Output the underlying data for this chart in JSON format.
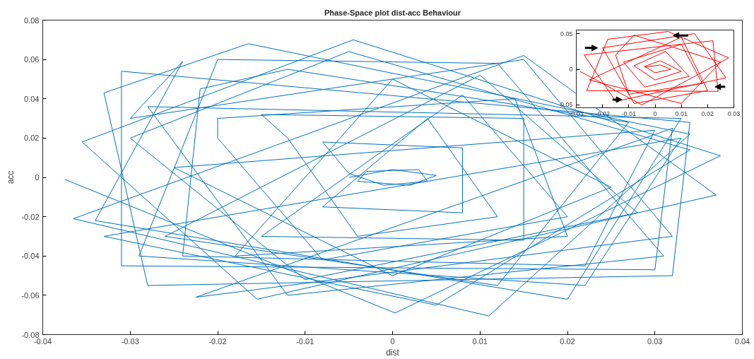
{
  "chart_data": [
    {
      "type": "line",
      "title": "Phase-Space plot dist-acc Behaviour",
      "xlabel": "dist",
      "ylabel": "acc",
      "color": "#0072bd",
      "x": [
        -0.0375,
        0.0003,
        0.0375,
        -0.0045,
        -0.0355,
        -0.0155,
        0.037,
        0.015,
        -0.0365,
        0.011,
        0.034,
        -0.0165,
        -0.033,
        -0.028,
        0.032,
        0.034,
        -0.031,
        -0.031,
        0.03,
        0.032,
        -0.0225,
        0.032,
        0.015,
        -0.03,
        -0.024,
        -0.034,
        0.02,
        0.033,
        -0.028,
        -0.012,
        0.031,
        0.012,
        -0.02,
        -0.029,
        0.022,
        0.033,
        -0.033,
        0.005,
        0.034,
        -0.005,
        -0.03,
        -0.01,
        0.028,
        0.01,
        -0.026,
        0.012,
        0.027,
        -0.012,
        -0.022,
        -0.024,
        0.022,
        0.03,
        -0.025,
        0.0,
        0.025,
        0.0,
        -0.018,
        0.02,
        0.014,
        -0.02,
        -0.02,
        -0.008,
        0.02,
        0.008,
        -0.015,
        0.015,
        0.015,
        -0.015,
        -0.012,
        -0.004,
        0.012,
        0.004,
        -0.008,
        0.008,
        0.008,
        -0.008,
        -0.005,
        -0.001,
        0.004,
        0.003,
        -0.003,
        -0.004,
        0.002,
        0.005,
        0.0,
        -0.005
      ],
      "values": [
        -0.001,
        -0.069,
        0.011,
        0.07,
        0.018,
        -0.062,
        -0.009,
        0.062,
        -0.021,
        -0.0705,
        0.022,
        0.068,
        0.043,
        -0.055,
        -0.05,
        0.028,
        0.054,
        -0.045,
        -0.047,
        0.025,
        -0.061,
        -0.03,
        0.06,
        0.03,
        0.059,
        -0.022,
        -0.062,
        0.03,
        0.036,
        -0.06,
        -0.04,
        0.058,
        0.06,
        -0.04,
        -0.055,
        0.02,
        -0.03,
        -0.065,
        0.014,
        0.064,
        0.02,
        -0.052,
        -0.018,
        0.052,
        -0.03,
        -0.055,
        0.028,
        0.055,
        0.045,
        -0.04,
        -0.045,
        0.024,
        0.005,
        -0.05,
        -0.005,
        0.05,
        -0.04,
        -0.03,
        0.04,
        0.03,
        0.02,
        -0.042,
        -0.02,
        0.042,
        -0.03,
        -0.032,
        0.03,
        0.032,
        0.02,
        -0.03,
        -0.02,
        0.03,
        -0.015,
        -0.018,
        0.015,
        0.018,
        0.002,
        -0.004,
        -0.002,
        0.004,
        0.003,
        -0.002,
        -0.004,
        0.001,
        0.004,
        0.0
      ],
      "xlim": [
        -0.04,
        0.04
      ],
      "ylim": [
        -0.08,
        0.08
      ],
      "xticks": [
        -0.04,
        -0.03,
        -0.02,
        -0.01,
        0,
        0.01,
        0.02,
        0.03,
        0.04
      ],
      "yticks": [
        -0.08,
        -0.06,
        -0.04,
        -0.02,
        0,
        0.02,
        0.04,
        0.06,
        0.08
      ]
    },
    {
      "type": "line",
      "color": "#ff0000",
      "x": [
        -0.0285,
        -0.005,
        0.028,
        0.005,
        -0.018,
        -0.026,
        0.024,
        0.022,
        -0.027,
        -0.015,
        0.027,
        0.015,
        -0.02,
        -0.008,
        0.02,
        0.01,
        -0.025,
        0.01,
        0.025,
        -0.008,
        -0.015,
        -0.01,
        0.018,
        0.01,
        -0.012,
        -0.004,
        0.013,
        0.004,
        -0.008,
        0.0,
        0.01,
        0.002,
        -0.004,
        0.0,
        0.006,
        0.002,
        -0.004
      ],
      "values": [
        -0.003,
        -0.05,
        0.016,
        0.053,
        0.042,
        -0.03,
        -0.031,
        0.04,
        0.02,
        -0.045,
        -0.012,
        0.05,
        0.03,
        -0.048,
        -0.03,
        0.045,
        -0.015,
        -0.048,
        0.01,
        0.048,
        0.02,
        -0.035,
        -0.02,
        0.035,
        0.01,
        -0.025,
        -0.01,
        0.025,
        0.005,
        -0.015,
        -0.003,
        0.012,
        0.004,
        -0.005,
        0.0,
        0.006,
        0.003
      ],
      "xlim": [
        -0.03,
        0.03
      ],
      "ylim": [
        -0.054,
        0.055
      ],
      "xticks": [
        -0.03,
        -0.02,
        -0.01,
        0,
        0.01,
        0.02,
        0.03
      ],
      "yticks": [
        -0.05,
        0,
        0.05
      ]
    }
  ]
}
